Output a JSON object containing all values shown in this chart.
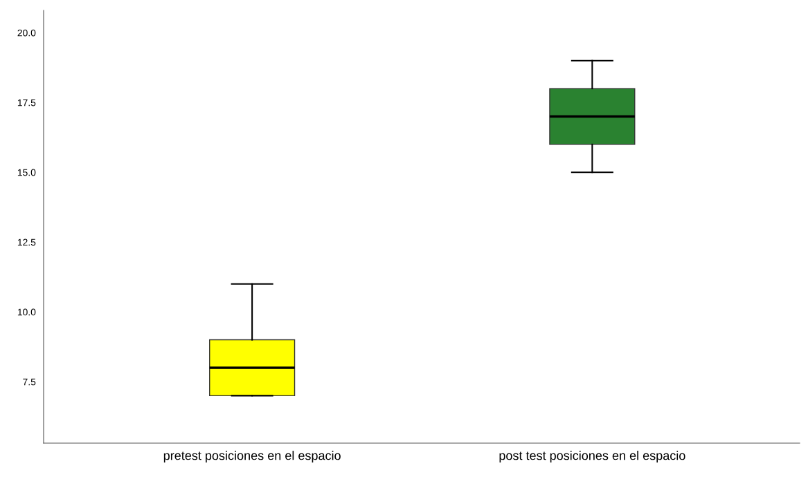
{
  "chart_data": {
    "type": "box",
    "categories": [
      "pretest posiciones en el espacio",
      "post test posiciones en el espacio"
    ],
    "colors": [
      "#ffff00",
      "#2a8230"
    ],
    "boxes": [
      {
        "low": 7,
        "q1": 7,
        "median": 8,
        "q3": 9,
        "high": 11
      },
      {
        "low": 15,
        "q1": 16,
        "median": 17,
        "q3": 18,
        "high": 19
      }
    ],
    "ylim": [
      5.3,
      20.8
    ],
    "yticks": [
      {
        "value": 7.5,
        "label": "7.5"
      },
      {
        "value": 10,
        "label": "10.0"
      },
      {
        "value": 12.5,
        "label": "12.5"
      },
      {
        "value": 15,
        "label": "15.0"
      },
      {
        "value": 17.5,
        "label": "17.5"
      },
      {
        "value": 20,
        "label": "20.0"
      }
    ],
    "grid": false,
    "legend": false
  }
}
